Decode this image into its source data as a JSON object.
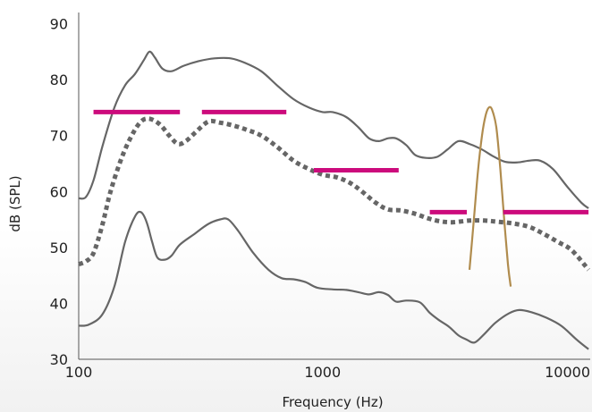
{
  "chart_data": {
    "type": "line",
    "title": "",
    "xlabel": "Frequency (Hz)",
    "ylabel": "dB (SPL)",
    "xscale": "log",
    "xlim": [
      100,
      12500
    ],
    "ylim": [
      30,
      92
    ],
    "x_ticks": [
      100,
      1000,
      10000
    ],
    "x_tick_labels": [
      "100",
      "1000",
      "10000"
    ],
    "y_ticks": [
      30,
      40,
      50,
      60,
      70,
      80,
      90
    ],
    "y_tick_labels": [
      "30",
      "40",
      "50",
      "60",
      "70",
      "80",
      "90"
    ],
    "grid": false,
    "legend": "none",
    "series": [
      {
        "style": "solid",
        "color": "#666666",
        "points": [
          [
            100,
            58.8
          ],
          [
            107,
            59
          ],
          [
            115,
            62
          ],
          [
            125,
            68
          ],
          [
            140,
            75
          ],
          [
            155,
            79
          ],
          [
            170,
            81
          ],
          [
            185,
            83.5
          ],
          [
            195,
            85
          ],
          [
            205,
            84
          ],
          [
            220,
            82
          ],
          [
            240,
            81.5
          ],
          [
            270,
            82.5
          ],
          [
            310,
            83.3
          ],
          [
            360,
            83.8
          ],
          [
            420,
            83.8
          ],
          [
            480,
            83
          ],
          [
            560,
            81.5
          ],
          [
            650,
            79
          ],
          [
            760,
            76.5
          ],
          [
            880,
            75
          ],
          [
            1000,
            74.2
          ],
          [
            1100,
            74.2
          ],
          [
            1250,
            73.3
          ],
          [
            1400,
            71.5
          ],
          [
            1550,
            69.5
          ],
          [
            1700,
            69
          ],
          [
            1850,
            69.5
          ],
          [
            2000,
            69.5
          ],
          [
            2200,
            68.3
          ],
          [
            2400,
            66.5
          ],
          [
            2650,
            66
          ],
          [
            2950,
            66.2
          ],
          [
            3250,
            67.5
          ],
          [
            3600,
            69
          ],
          [
            4000,
            68.5
          ],
          [
            4500,
            67.5
          ],
          [
            5000,
            66.3
          ],
          [
            5600,
            65.3
          ],
          [
            6300,
            65.2
          ],
          [
            7000,
            65.5
          ],
          [
            7800,
            65.5
          ],
          [
            8800,
            64
          ],
          [
            10000,
            61
          ],
          [
            11500,
            58
          ],
          [
            12300,
            57
          ]
        ]
      },
      {
        "style": "dotted",
        "color": "#666666",
        "points": [
          [
            100,
            47
          ],
          [
            107,
            47.5
          ],
          [
            115,
            49
          ],
          [
            125,
            54
          ],
          [
            135,
            60
          ],
          [
            150,
            66
          ],
          [
            165,
            70
          ],
          [
            180,
            72.5
          ],
          [
            195,
            73
          ],
          [
            215,
            72
          ],
          [
            235,
            70
          ],
          [
            255,
            68.5
          ],
          [
            275,
            69
          ],
          [
            300,
            70.5
          ],
          [
            340,
            72.5
          ],
          [
            380,
            72.3
          ],
          [
            430,
            71.8
          ],
          [
            490,
            71
          ],
          [
            560,
            70
          ],
          [
            650,
            68
          ],
          [
            760,
            65.5
          ],
          [
            880,
            64
          ],
          [
            1000,
            63
          ],
          [
            1150,
            62.5
          ],
          [
            1300,
            61.5
          ],
          [
            1450,
            60
          ],
          [
            1650,
            58
          ],
          [
            1850,
            56.8
          ],
          [
            2100,
            56.6
          ],
          [
            2400,
            56
          ],
          [
            2700,
            55.2
          ],
          [
            3000,
            54.7
          ],
          [
            3400,
            54.5
          ],
          [
            4000,
            54.8
          ],
          [
            4600,
            54.8
          ],
          [
            5200,
            54.6
          ],
          [
            6000,
            54.3
          ],
          [
            7000,
            53.7
          ],
          [
            8000,
            52.5
          ],
          [
            9200,
            51
          ],
          [
            10500,
            49.5
          ],
          [
            12300,
            46
          ]
        ]
      },
      {
        "style": "solid",
        "color": "#666666",
        "points": [
          [
            100,
            36
          ],
          [
            110,
            36.2
          ],
          [
            125,
            38
          ],
          [
            140,
            43
          ],
          [
            155,
            51
          ],
          [
            170,
            55.5
          ],
          [
            180,
            56.3
          ],
          [
            190,
            54.5
          ],
          [
            200,
            51
          ],
          [
            210,
            48.2
          ],
          [
            225,
            47.8
          ],
          [
            240,
            48.5
          ],
          [
            260,
            50.5
          ],
          [
            300,
            52.5
          ],
          [
            340,
            54.2
          ],
          [
            380,
            55
          ],
          [
            410,
            55
          ],
          [
            450,
            53
          ],
          [
            520,
            49
          ],
          [
            600,
            46
          ],
          [
            680,
            44.5
          ],
          [
            760,
            44.3
          ],
          [
            850,
            43.8
          ],
          [
            950,
            42.8
          ],
          [
            1100,
            42.5
          ],
          [
            1250,
            42.4
          ],
          [
            1400,
            42
          ],
          [
            1550,
            41.6
          ],
          [
            1700,
            42
          ],
          [
            1850,
            41.5
          ],
          [
            2000,
            40.3
          ],
          [
            2200,
            40.5
          ],
          [
            2500,
            40.2
          ],
          [
            2750,
            38.3
          ],
          [
            3000,
            37
          ],
          [
            3300,
            35.8
          ],
          [
            3600,
            34.3
          ],
          [
            3900,
            33.5
          ],
          [
            4200,
            33
          ],
          [
            4600,
            34.5
          ],
          [
            5100,
            36.5
          ],
          [
            5800,
            38.2
          ],
          [
            6400,
            38.8
          ],
          [
            7200,
            38.4
          ],
          [
            8200,
            37.5
          ],
          [
            9500,
            36
          ],
          [
            11000,
            33.5
          ],
          [
            12300,
            31.8
          ]
        ]
      },
      {
        "style": "solid",
        "color": "#b08c4e",
        "points": [
          [
            4000,
            46
          ],
          [
            4170,
            55
          ],
          [
            4330,
            63.5
          ],
          [
            4500,
            70
          ],
          [
            4650,
            73.5
          ],
          [
            4800,
            75
          ],
          [
            4950,
            74.6
          ],
          [
            5150,
            71.5
          ],
          [
            5350,
            64
          ],
          [
            5550,
            55
          ],
          [
            5750,
            47
          ],
          [
            5900,
            43
          ]
        ]
      }
    ],
    "bands": [
      {
        "color": "#cc0b7c",
        "x": [
          115,
          260
        ],
        "y": 74.2
      },
      {
        "color": "#cc0b7c",
        "x": [
          320,
          710
        ],
        "y": 74.2
      },
      {
        "color": "#cc0b7c",
        "x": [
          920,
          2050
        ],
        "y": 63.8
      },
      {
        "color": "#cc0b7c",
        "x": [
          2750,
          3900
        ],
        "y": 56.3
      },
      {
        "color": "#cc0b7c",
        "x": [
          5500,
          12300
        ],
        "y": 56.3
      }
    ]
  }
}
